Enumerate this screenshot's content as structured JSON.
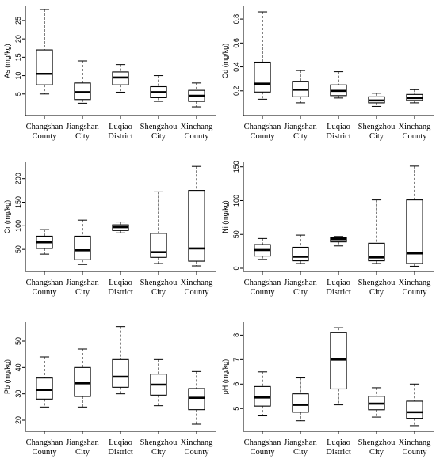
{
  "chart_data": [
    {
      "type": "boxplot",
      "ylabel": "As (mg/kg)",
      "categories": [
        "Changshan County",
        "Jiangshan City",
        "Luqiao District",
        "Shengzhou City",
        "Xinchang County"
      ],
      "category_lines": [
        [
          "Changshan",
          "County"
        ],
        [
          "Jiangshan",
          "City"
        ],
        [
          "Luqiao",
          "District"
        ],
        [
          "Shengzhou",
          "City"
        ],
        [
          "Xinchang",
          "County"
        ]
      ],
      "ylim": [
        0,
        28
      ],
      "yticks": [
        5,
        10,
        15,
        20,
        25
      ],
      "boxes": [
        {
          "min": 5,
          "q1": 7.5,
          "median": 10.5,
          "q3": 17,
          "max": 28
        },
        {
          "min": 2.5,
          "q1": 3.5,
          "median": 5.5,
          "q3": 8,
          "max": 14
        },
        {
          "min": 5.5,
          "q1": 7.5,
          "median": 9.5,
          "q3": 11,
          "max": 13
        },
        {
          "min": 3,
          "q1": 4,
          "median": 5.5,
          "q3": 7,
          "max": 10
        },
        {
          "min": 1.5,
          "q1": 3,
          "median": 4.5,
          "q3": 6,
          "max": 8
        }
      ]
    },
    {
      "type": "boxplot",
      "ylabel": "Cd (mg/kg)",
      "categories": [
        "Changshan County",
        "Jiangshan City",
        "Luqiao District",
        "Shengzhou City",
        "Xinchang County"
      ],
      "category_lines": [
        [
          "Changshan",
          "County"
        ],
        [
          "Jiangshan",
          "City"
        ],
        [
          "Luqiao",
          "District"
        ],
        [
          "Shengzhou",
          "City"
        ],
        [
          "Xinchang",
          "County"
        ]
      ],
      "ylim": [
        0.02,
        0.88
      ],
      "yticks": [
        0.2,
        0.4,
        0.6,
        0.8
      ],
      "ytick_labels": [
        "0.2",
        "0.4",
        "0.6",
        "0.8"
      ],
      "boxes": [
        {
          "min": 0.13,
          "q1": 0.19,
          "median": 0.26,
          "q3": 0.44,
          "max": 0.86
        },
        {
          "min": 0.1,
          "q1": 0.15,
          "median": 0.21,
          "q3": 0.28,
          "max": 0.37
        },
        {
          "min": 0.14,
          "q1": 0.16,
          "median": 0.2,
          "q3": 0.25,
          "max": 0.36
        },
        {
          "min": 0.07,
          "q1": 0.1,
          "median": 0.12,
          "q3": 0.15,
          "max": 0.18
        },
        {
          "min": 0.1,
          "q1": 0.12,
          "median": 0.14,
          "q3": 0.17,
          "max": 0.21
        }
      ]
    },
    {
      "type": "boxplot",
      "ylabel": "Cr (mg/kg)",
      "categories": [
        "Changshan County",
        "Jiangshan City",
        "Luqiao District",
        "Shengzhou City",
        "Xinchang County"
      ],
      "category_lines": [
        [
          "Changshan",
          "County"
        ],
        [
          "Jiangshan",
          "City"
        ],
        [
          "Luqiao",
          "District"
        ],
        [
          "Shengzhou",
          "City"
        ],
        [
          "Xinchang",
          "County"
        ]
      ],
      "ylim": [
        10,
        228
      ],
      "yticks": [
        50,
        100,
        150,
        200
      ],
      "boxes": [
        {
          "min": 40,
          "q1": 52,
          "median": 65,
          "q3": 78,
          "max": 92
        },
        {
          "min": 18,
          "q1": 28,
          "median": 48,
          "q3": 78,
          "max": 112
        },
        {
          "min": 85,
          "q1": 90,
          "median": 97,
          "q3": 102,
          "max": 108
        },
        {
          "min": 20,
          "q1": 33,
          "median": 44,
          "q3": 84,
          "max": 172
        },
        {
          "min": 15,
          "q1": 25,
          "median": 52,
          "q3": 175,
          "max": 226
        }
      ]
    },
    {
      "type": "boxplot",
      "ylabel": "Ni (mg/kg)",
      "categories": [
        "Changshan County",
        "Jiangshan City",
        "Luqiao District",
        "Shengzhou City",
        "Xinchang County"
      ],
      "category_lines": [
        [
          "Changshan",
          "County"
        ],
        [
          "Jiangshan",
          "City"
        ],
        [
          "Luqiao",
          "District"
        ],
        [
          "Shengzhou",
          "City"
        ],
        [
          "Xinchang",
          "County"
        ]
      ],
      "ylim": [
        0,
        152
      ],
      "yticks": [
        0,
        50,
        100,
        150
      ],
      "boxes": [
        {
          "min": 13,
          "q1": 18,
          "median": 27,
          "q3": 35,
          "max": 44
        },
        {
          "min": 7,
          "q1": 11,
          "median": 17,
          "q3": 31,
          "max": 49
        },
        {
          "min": 33,
          "q1": 39,
          "median": 43,
          "q3": 45,
          "max": 47
        },
        {
          "min": 7,
          "q1": 11,
          "median": 16,
          "q3": 37,
          "max": 101
        },
        {
          "min": 3,
          "q1": 7,
          "median": 22,
          "q3": 101,
          "max": 151
        }
      ]
    },
    {
      "type": "boxplot",
      "ylabel": "Pb (mg/kg)",
      "categories": [
        "Changshan County",
        "Jiangshan City",
        "Luqiao District",
        "Shengzhou City",
        "Xinchang County"
      ],
      "category_lines": [
        [
          "Changshan",
          "County"
        ],
        [
          "Jiangshan",
          "City"
        ],
        [
          "Luqiao",
          "District"
        ],
        [
          "Shengzhou",
          "City"
        ],
        [
          "Xinchang",
          "County"
        ]
      ],
      "ylim": [
        17,
        56
      ],
      "yticks": [
        20,
        30,
        40,
        50
      ],
      "boxes": [
        {
          "min": 25,
          "q1": 28,
          "median": 31.5,
          "q3": 36,
          "max": 44
        },
        {
          "min": 25,
          "q1": 29,
          "median": 34,
          "q3": 40,
          "max": 47
        },
        {
          "min": 30,
          "q1": 32.5,
          "median": 36.5,
          "q3": 43,
          "max": 55.5
        },
        {
          "min": 25.5,
          "q1": 29.5,
          "median": 33.5,
          "q3": 37.5,
          "max": 43
        },
        {
          "min": 18.5,
          "q1": 24,
          "median": 28.5,
          "q3": 32,
          "max": 38.5
        }
      ]
    },
    {
      "type": "boxplot",
      "ylabel": "pH (mg/kg)",
      "categories": [
        "Changshan County",
        "Jiangshan City",
        "Luqiao District",
        "Shengzhou City",
        "Xinchang County"
      ],
      "category_lines": [
        [
          "Changshan",
          "County"
        ],
        [
          "Jiangshan",
          "City"
        ],
        [
          "Luqiao",
          "District"
        ],
        [
          "Shengzhou",
          "City"
        ],
        [
          "Xinchang",
          "County"
        ]
      ],
      "ylim": [
        4.2,
        8.4
      ],
      "yticks": [
        5,
        6,
        7,
        8
      ],
      "boxes": [
        {
          "min": 4.7,
          "q1": 5.1,
          "median": 5.45,
          "q3": 5.9,
          "max": 6.5
        },
        {
          "min": 4.5,
          "q1": 4.85,
          "median": 5.15,
          "q3": 5.6,
          "max": 6.25
        },
        {
          "min": 5.15,
          "q1": 5.8,
          "median": 7.0,
          "q3": 8.1,
          "max": 8.3
        },
        {
          "min": 4.65,
          "q1": 4.95,
          "median": 5.2,
          "q3": 5.5,
          "max": 5.85
        },
        {
          "min": 4.3,
          "q1": 4.6,
          "median": 4.85,
          "q3": 5.3,
          "max": 6.0
        }
      ]
    }
  ]
}
